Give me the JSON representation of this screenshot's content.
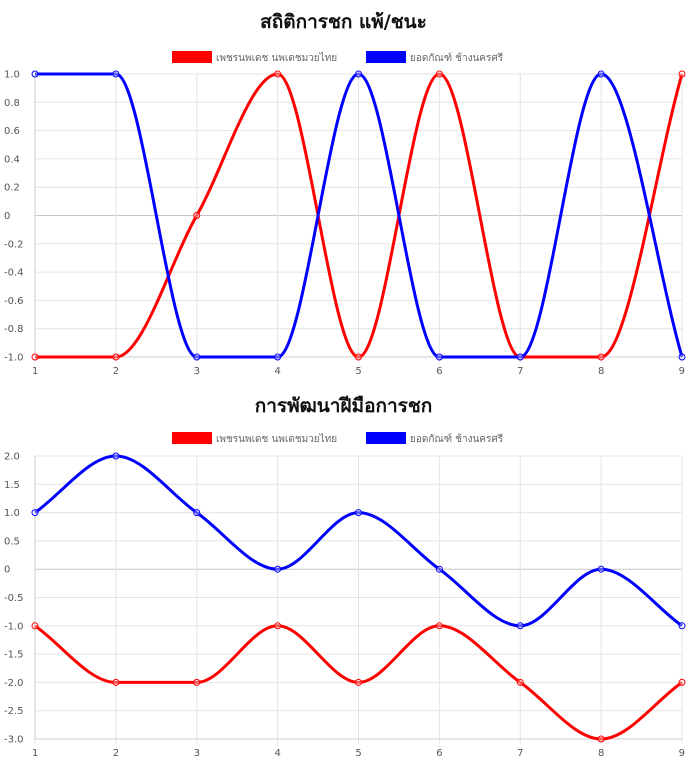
{
  "chart_data": [
    {
      "type": "line",
      "title": "สถิติการชก แพ้/ชนะ",
      "x": [
        1,
        2,
        3,
        4,
        5,
        6,
        7,
        8,
        9
      ],
      "xticks": [
        "1",
        "2",
        "3",
        "4",
        "5",
        "6",
        "7",
        "8",
        "9"
      ],
      "ylim": [
        -1.0,
        1.0
      ],
      "yticks": [
        "1.0",
        "0.8",
        "0.6",
        "0.4",
        "0.2",
        "0",
        "-0.2",
        "-0.4",
        "-0.6",
        "-0.8",
        "-1.0"
      ],
      "ytick_values": [
        1.0,
        0.8,
        0.6,
        0.4,
        0.2,
        0,
        -0.2,
        -0.4,
        -0.6,
        -0.8,
        -1.0
      ],
      "legend_position": "top",
      "grid": true,
      "series": [
        {
          "name": "เพชรนพเดช นพเดชมวยไทย",
          "color": "#ff0000",
          "values": [
            -1,
            -1,
            0,
            1,
            -1,
            1,
            -1,
            -1,
            1
          ]
        },
        {
          "name": "ยอดกัณฑ์ ช้างนครศรี",
          "color": "#0000ff",
          "values": [
            1,
            1,
            -1,
            -1,
            1,
            -1,
            -1,
            1,
            -1
          ]
        }
      ]
    },
    {
      "type": "line",
      "title": "การพัฒนาฝีมือการชก",
      "x": [
        1,
        2,
        3,
        4,
        5,
        6,
        7,
        8,
        9
      ],
      "xticks": [
        "1",
        "2",
        "3",
        "4",
        "5",
        "6",
        "7",
        "8",
        "9"
      ],
      "ylim": [
        -3.0,
        2.0
      ],
      "yticks": [
        "2.0",
        "1.5",
        "1.0",
        "0.5",
        "0",
        "-0.5",
        "-1.0",
        "-1.5",
        "-2.0",
        "-2.5",
        "-3.0"
      ],
      "ytick_values": [
        2.0,
        1.5,
        1.0,
        0.5,
        0,
        -0.5,
        -1.0,
        -1.5,
        -2.0,
        -2.5,
        -3.0
      ],
      "legend_position": "top",
      "grid": true,
      "series": [
        {
          "name": "เพชรนพเดช นพเดชมวยไทย",
          "color": "#ff0000",
          "values": [
            -1,
            -2,
            -2,
            -1,
            -2,
            -1,
            -2,
            -3,
            -2
          ]
        },
        {
          "name": "ยอดกัณฑ์ ช้างนครศรี",
          "color": "#0000ff",
          "values": [
            1,
            2,
            1,
            0,
            1,
            0,
            -1,
            0,
            -1
          ]
        }
      ]
    }
  ]
}
